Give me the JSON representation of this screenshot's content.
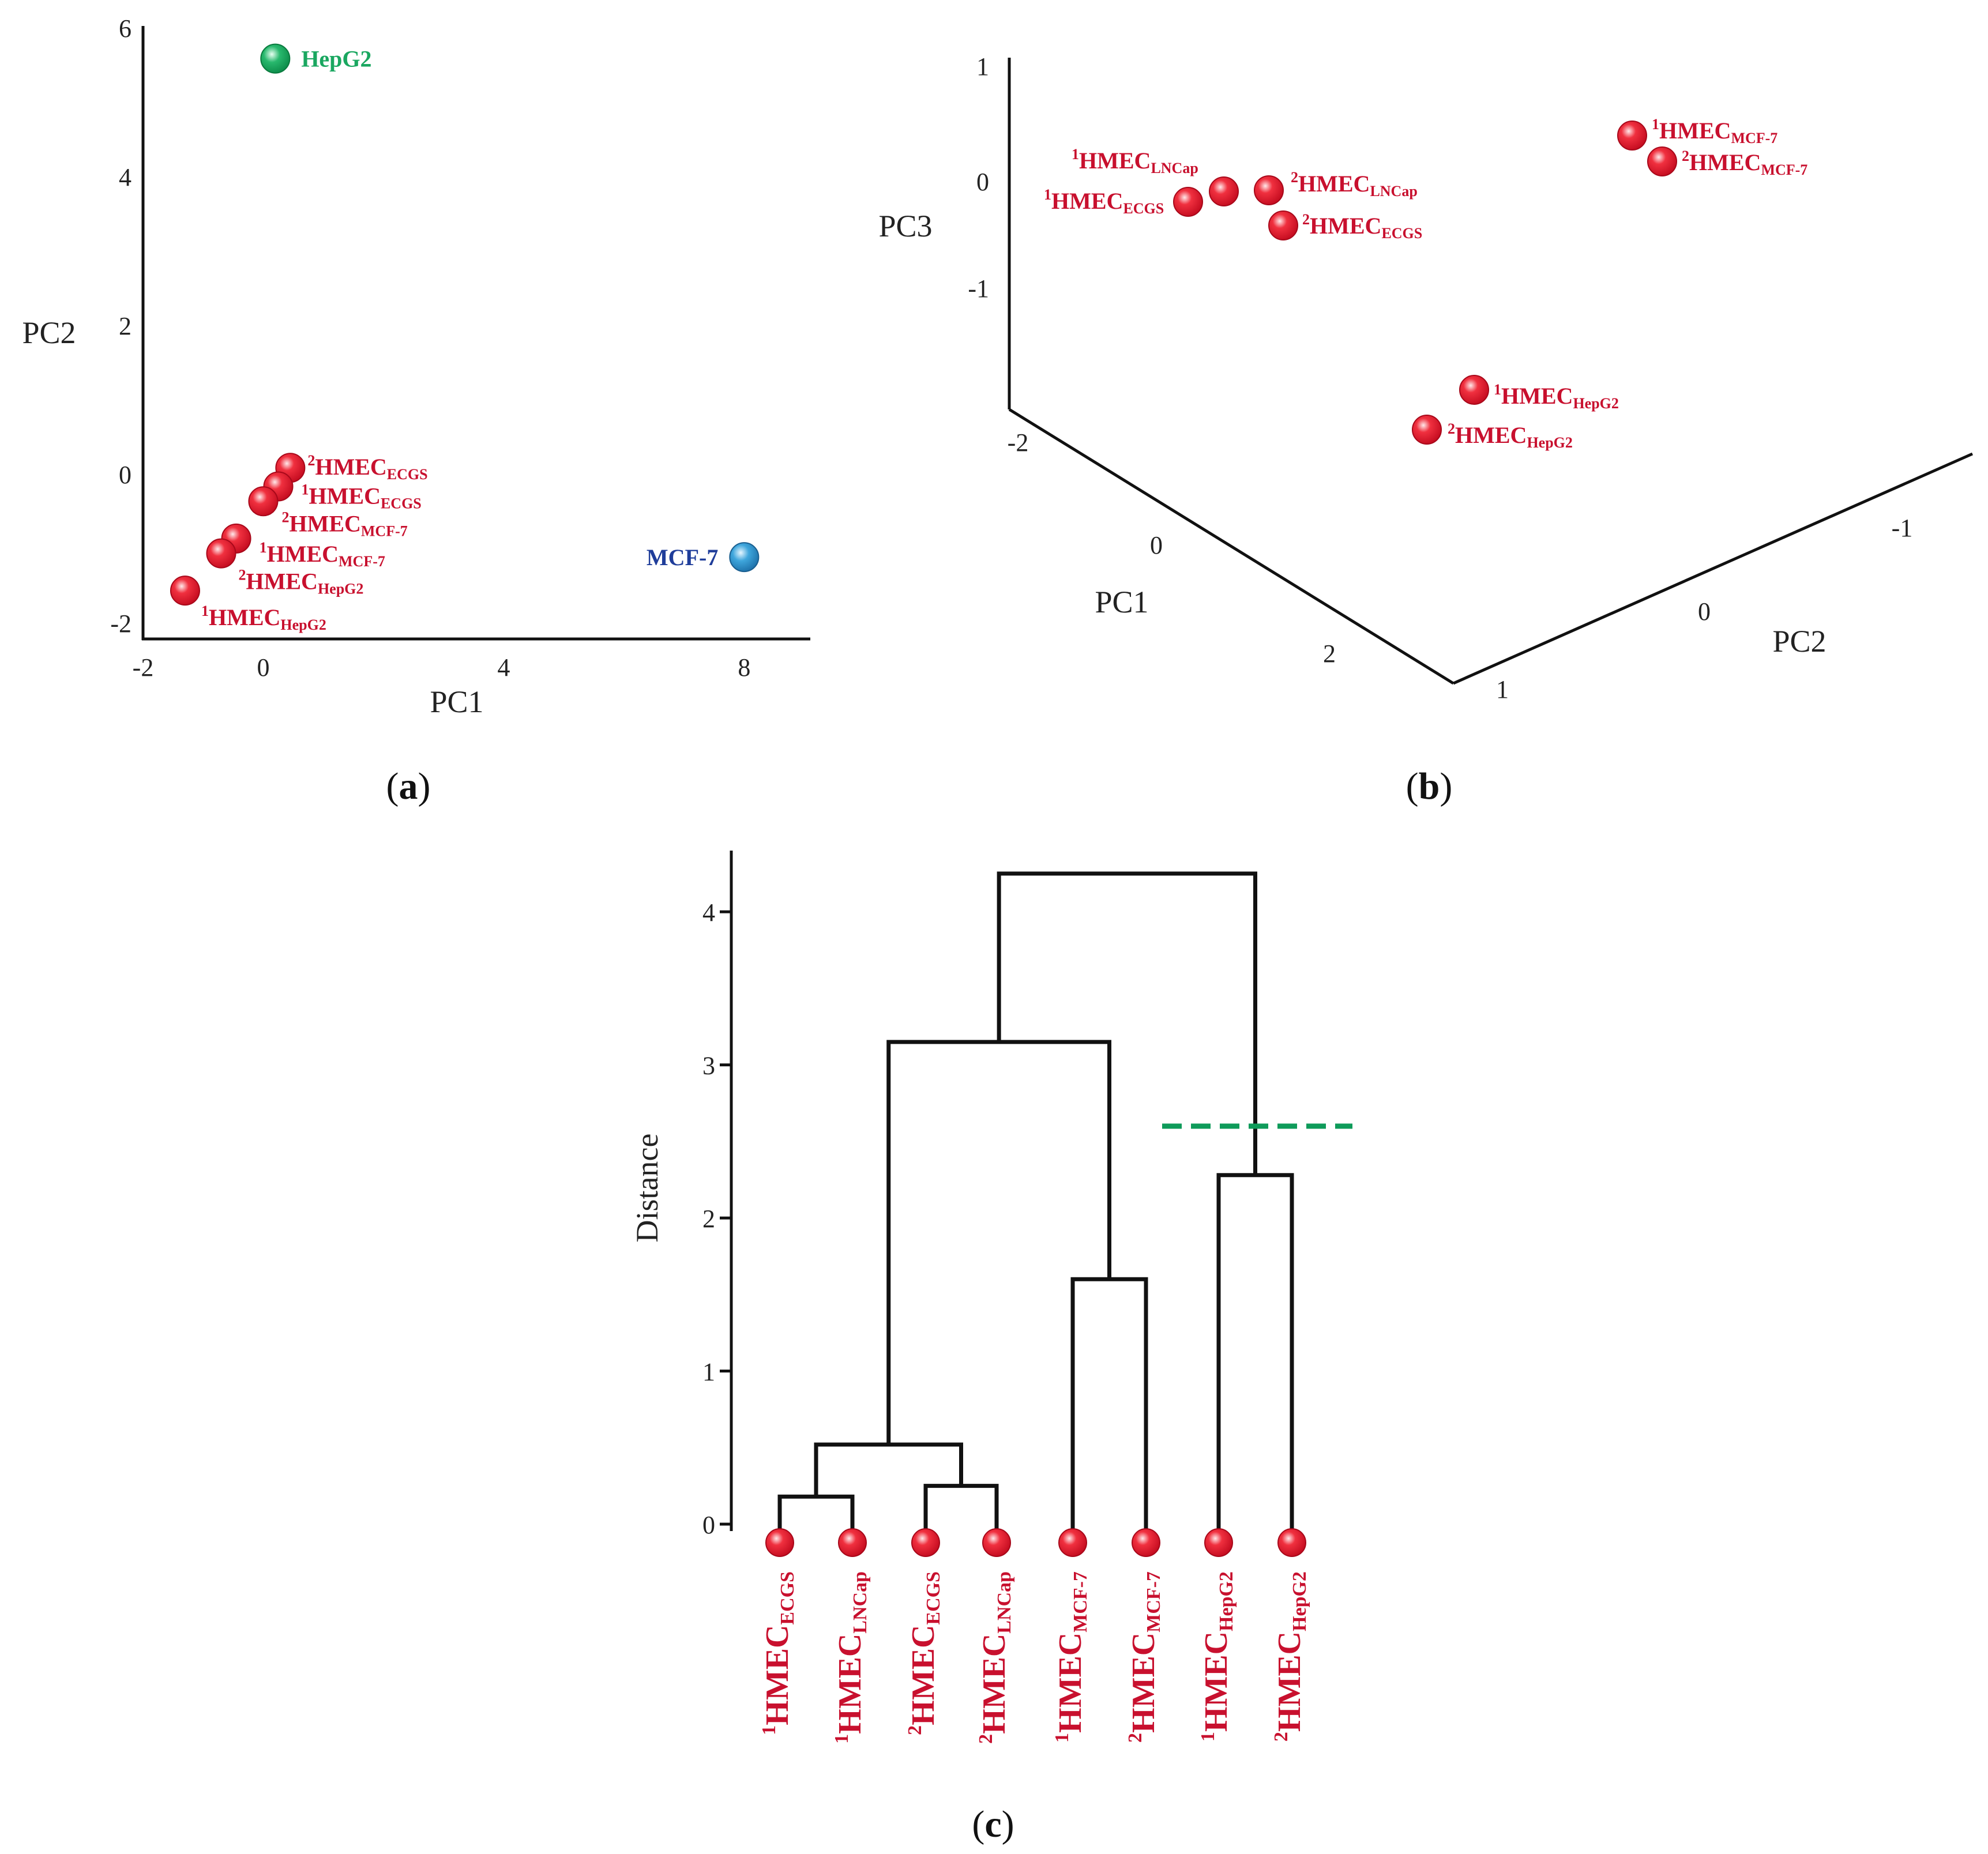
{
  "figure": {
    "panel_labels": [
      "a",
      "b",
      "c"
    ]
  },
  "colors": {
    "red": "#e0112b",
    "red_text": "#c8102e",
    "green": "#1aa760",
    "blue_point": "#2c8fc8",
    "blue_text": "#1f3d9a",
    "axis": "#111111",
    "cut": "#0e9b5a"
  },
  "chart_data": [
    {
      "panel": "a",
      "type": "scatter",
      "xlabel": "PC1",
      "ylabel": "PC2",
      "xlim": [
        -2,
        9.1
      ],
      "ylim": [
        -2.2,
        6
      ],
      "xticks": [
        -2,
        0,
        4,
        8
      ],
      "yticks": [
        -2,
        0,
        2,
        4,
        6
      ],
      "points": [
        {
          "x": 0.2,
          "y": 5.6,
          "label": "HepG2",
          "sup": "",
          "sub": "",
          "color": "green"
        },
        {
          "x": 8.0,
          "y": -1.1,
          "label": "MCF-7",
          "sup": "",
          "sub": "",
          "color": "blue"
        },
        {
          "x": 0.45,
          "y": 0.1,
          "label": "HMEC",
          "sup": "2",
          "sub": "ECGS",
          "color": "red"
        },
        {
          "x": 0.25,
          "y": -0.15,
          "label": "HMEC",
          "sup": "1",
          "sub": "ECGS",
          "color": "red"
        },
        {
          "x": 0.0,
          "y": -0.35,
          "label": "HMEC",
          "sup": "2",
          "sub": "MCF-7",
          "color": "red"
        },
        {
          "x": -0.45,
          "y": -0.85,
          "label": "HMEC",
          "sup": "1",
          "sub": "MCF-7",
          "color": "red"
        },
        {
          "x": -0.7,
          "y": -1.05,
          "label": "HMEC",
          "sup": "2",
          "sub": "HepG2",
          "color": "red"
        },
        {
          "x": -1.3,
          "y": -1.55,
          "label": "HMEC",
          "sup": "1",
          "sub": "HepG2",
          "color": "red"
        }
      ]
    },
    {
      "panel": "b",
      "type": "scatter",
      "xlabel": "PC1",
      "ylabel": "PC2",
      "zlabel": "PC3",
      "xticks": [
        -2,
        0,
        2
      ],
      "yticks": [
        1,
        0,
        -1
      ],
      "zticks": [
        1,
        0,
        -1
      ],
      "points": [
        {
          "label": "HMEC",
          "sup": "1",
          "sub": "LNCap",
          "color": "red"
        },
        {
          "label": "HMEC",
          "sup": "1",
          "sub": "ECGS",
          "color": "red"
        },
        {
          "label": "HMEC",
          "sup": "2",
          "sub": "LNCap",
          "color": "red"
        },
        {
          "label": "HMEC",
          "sup": "2",
          "sub": "ECGS",
          "color": "red"
        },
        {
          "label": "HMEC",
          "sup": "1",
          "sub": "MCF-7",
          "color": "red"
        },
        {
          "label": "HMEC",
          "sup": "2",
          "sub": "MCF-7",
          "color": "red"
        },
        {
          "label": "HMEC",
          "sup": "1",
          "sub": "HepG2",
          "color": "red"
        },
        {
          "label": "HMEC",
          "sup": "2",
          "sub": "HepG2",
          "color": "red"
        }
      ]
    },
    {
      "panel": "c",
      "type": "dendrogram",
      "ylabel": "Distance",
      "ylim": [
        0,
        4.4
      ],
      "yticks": [
        0,
        1,
        2,
        3,
        4
      ],
      "leaves": [
        {
          "label": "HMEC",
          "sup": "1",
          "sub": "ECGS"
        },
        {
          "label": "HMEC",
          "sup": "1",
          "sub": "LNCap"
        },
        {
          "label": "HMEC",
          "sup": "2",
          "sub": "ECGS"
        },
        {
          "label": "HMEC",
          "sup": "2",
          "sub": "LNCap"
        },
        {
          "label": "HMEC",
          "sup": "1",
          "sub": "MCF-7"
        },
        {
          "label": "HMEC",
          "sup": "2",
          "sub": "MCF-7"
        },
        {
          "label": "HMEC",
          "sup": "1",
          "sub": "HepG2"
        },
        {
          "label": "HMEC",
          "sup": "2",
          "sub": "HepG2"
        }
      ],
      "merges": [
        {
          "a": 0,
          "b": 1,
          "height": 0.18
        },
        {
          "a": 2,
          "b": 3,
          "height": 0.25
        },
        {
          "a": 8,
          "b": 9,
          "height": 0.52
        },
        {
          "a": 4,
          "b": 5,
          "height": 1.6
        },
        {
          "a": 6,
          "b": 7,
          "height": 2.28
        },
        {
          "a": 10,
          "b": 11,
          "height": 3.15
        },
        {
          "a": 13,
          "b": 12,
          "height": 4.25
        }
      ],
      "cut_height": 2.6
    }
  ]
}
